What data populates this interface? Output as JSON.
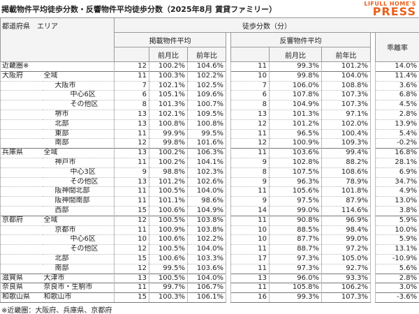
{
  "header": {
    "title": "掲載物件平均徒歩分数・反響物件平均徒歩分数（2025年8月 賃貸ファミリー）",
    "logo_top": "LIFULL HOME'S",
    "logo_main": "PRESS"
  },
  "table": {
    "headers": {
      "area": "都道府県　エリア",
      "walk": "徒歩分数（分）",
      "listed": "掲載物件平均",
      "inquiry": "反響物件平均",
      "listed_mom": "前月比",
      "listed_yoy": "前年比",
      "inquiry_mom": "前月比",
      "inquiry_yoy": "前年比",
      "gap": "乖離率"
    },
    "rows": [
      [
        "近畿圏※",
        null,
        12,
        "100.2%",
        "104.6%",
        11,
        "99.3%",
        "101.2%",
        "14.0%"
      ],
      [
        "大阪府",
        "全域",
        11,
        "100.3%",
        "102.2%",
        10,
        "99.8%",
        "104.0%",
        "11.4%"
      ],
      [
        null,
        "大阪市",
        7,
        "102.1%",
        "102.5%",
        7,
        "106.0%",
        "108.8%",
        "3.6%"
      ],
      [
        null,
        "中心6区",
        6,
        "105.1%",
        "109.6%",
        6,
        "107.8%",
        "107.3%",
        "6.8%"
      ],
      [
        null,
        "その他区",
        8,
        "101.3%",
        "100.7%",
        8,
        "104.9%",
        "107.3%",
        "4.5%"
      ],
      [
        null,
        "堺市",
        13,
        "102.1%",
        "109.5%",
        13,
        "101.3%",
        "97.1%",
        "2.8%"
      ],
      [
        null,
        "北部",
        13,
        "100.8%",
        "100.8%",
        12,
        "101.2%",
        "102.0%",
        "13.9%"
      ],
      [
        null,
        "東部",
        11,
        "99.9%",
        "99.5%",
        11,
        "96.5%",
        "100.4%",
        "5.4%"
      ],
      [
        null,
        "南部",
        12,
        "99.8%",
        "101.6%",
        12,
        "100.9%",
        "109.3%",
        "-0.2%"
      ],
      [
        "兵庫県",
        "全域",
        13,
        "100.2%",
        "106.3%",
        11,
        "103.6%",
        "99.4%",
        "16.8%"
      ],
      [
        null,
        "神戸市",
        11,
        "100.2%",
        "104.1%",
        9,
        "102.8%",
        "88.2%",
        "28.1%"
      ],
      [
        null,
        "中心3区",
        9,
        "98.8%",
        "102.3%",
        8,
        "107.5%",
        "108.6%",
        "6.9%"
      ],
      [
        null,
        "その他区",
        13,
        "101.2%",
        "102.6%",
        9,
        "96.3%",
        "78.9%",
        "34.7%"
      ],
      [
        null,
        "阪神間北部",
        11,
        "100.5%",
        "104.0%",
        11,
        "105.6%",
        "101.8%",
        "4.9%"
      ],
      [
        null,
        "阪神間南部",
        11,
        "101.1%",
        "98.6%",
        9,
        "97.5%",
        "87.9%",
        "13.0%"
      ],
      [
        null,
        "西部",
        15,
        "100.6%",
        "104.9%",
        14,
        "99.0%",
        "114.6%",
        "3.8%"
      ],
      [
        "京都府",
        "全域",
        12,
        "100.5%",
        "103.8%",
        11,
        "90.8%",
        "96.9%",
        "5.9%"
      ],
      [
        null,
        "京都市",
        11,
        "100.9%",
        "103.8%",
        10,
        "88.5%",
        "98.4%",
        "10.0%"
      ],
      [
        null,
        "中心6区",
        10,
        "100.6%",
        "102.2%",
        10,
        "87.7%",
        "99.0%",
        "5.9%"
      ],
      [
        null,
        "その他区",
        12,
        "100.5%",
        "104.0%",
        11,
        "88.7%",
        "97.2%",
        "13.1%"
      ],
      [
        null,
        "北部",
        15,
        "100.6%",
        "103.3%",
        17,
        "97.3%",
        "105.0%",
        "-10.9%"
      ],
      [
        null,
        "南部",
        12,
        "99.5%",
        "103.6%",
        11,
        "97.3%",
        "92.7%",
        "5.6%"
      ],
      [
        "滋賀県",
        "大津市",
        13,
        "100.5%",
        "104.0%",
        13,
        "96.0%",
        "93.3%",
        "2.8%"
      ],
      [
        "奈良県",
        "奈良市・生駒市",
        11,
        "99.7%",
        "106.7%",
        11,
        "105.8%",
        "106.2%",
        "3.0%"
      ],
      [
        "和歌山県",
        "和歌山市",
        15,
        "100.3%",
        "106.1%",
        16,
        "99.3%",
        "107.3%",
        "-3.6%"
      ]
    ]
  },
  "footnote": "※近畿圏：大阪府、兵庫県、京都府"
}
